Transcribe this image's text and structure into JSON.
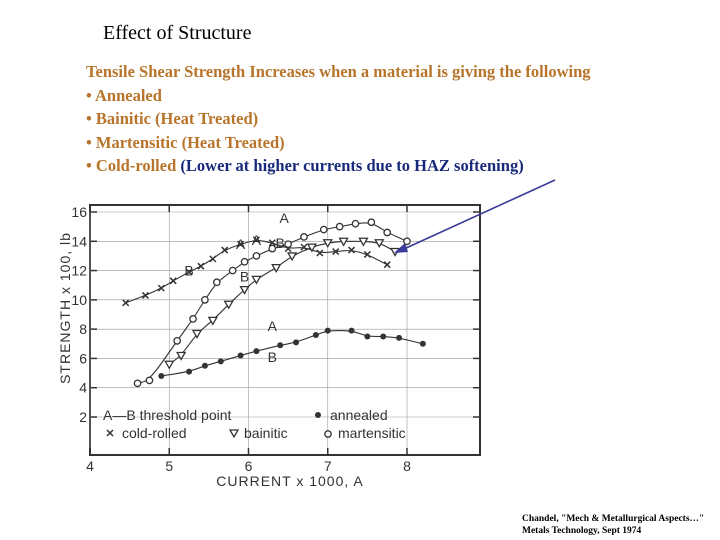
{
  "slide": {
    "title": "Effect of Structure",
    "intro": "Tensile Shear Strength Increases when a material is giving the following",
    "bullets": [
      "• Annealed",
      "• Bainitic (Heat Treated)",
      "• Martensitic (Heat Treated)",
      "• Cold-rolled"
    ],
    "cold_rolled_note": "(Lower at higher currents due to HAZ softening)",
    "citation_line1": "Chandel, \"Mech & Metallurgical Aspects…\"",
    "citation_line2": "Metals Technology, Sept 1974",
    "colors": {
      "orange_text": "#b8742a",
      "navy_text": "#1a2a7a",
      "arrow": "#3a3a9a"
    }
  },
  "chart_data": {
    "type": "scatter",
    "xlabel": "CURRENT x 1000, A",
    "ylabel": "STRENGTH x 100, lb",
    "xlim": [
      4,
      9
    ],
    "ylim": [
      2,
      16
    ],
    "x_ticks": [
      "4",
      "5",
      "6",
      "7",
      "8"
    ],
    "y_ticks": [
      "2",
      "4",
      "6",
      "8",
      "10",
      "12",
      "14",
      "16"
    ],
    "legend": {
      "threshold": "A—B  threshold point",
      "annealed": "annealed",
      "cold_rolled": "cold-rolled",
      "bainitic": "bainitic",
      "martensitic": "martensitic"
    },
    "series": [
      {
        "name": "cold-rolled",
        "marker": "x",
        "x": [
          4.45,
          4.7,
          4.9,
          5.05,
          5.25,
          5.4,
          5.55,
          5.7,
          5.9,
          6.1,
          6.3,
          6.5,
          6.7,
          6.9,
          7.1,
          7.3,
          7.5,
          7.75
        ],
        "y": [
          9.8,
          10.3,
          10.8,
          11.3,
          11.9,
          12.3,
          12.8,
          13.4,
          13.8,
          14.1,
          13.9,
          13.5,
          13.6,
          13.2,
          13.3,
          13.4,
          13.1,
          12.4
        ]
      },
      {
        "name": "martensitic",
        "marker": "circle",
        "x": [
          4.6,
          4.75,
          5.1,
          5.3,
          5.45,
          5.6,
          5.8,
          5.95,
          6.1,
          6.3,
          6.5,
          6.7,
          6.95,
          7.15,
          7.35,
          7.55,
          7.75,
          8.0
        ],
        "y": [
          4.3,
          4.5,
          7.2,
          8.7,
          10.0,
          11.2,
          12.0,
          12.6,
          13.0,
          13.5,
          13.8,
          14.3,
          14.8,
          15.0,
          15.2,
          15.3,
          14.6,
          14.0
        ]
      },
      {
        "name": "bainitic",
        "marker": "triangle-down",
        "x": [
          5.0,
          5.15,
          5.35,
          5.55,
          5.75,
          5.95,
          6.1,
          6.35,
          6.55,
          6.8,
          7.0,
          7.2,
          7.45,
          7.65,
          7.85
        ],
        "y": [
          5.6,
          6.2,
          7.7,
          8.6,
          9.7,
          10.7,
          11.4,
          12.2,
          13.0,
          13.6,
          13.9,
          14.0,
          14.0,
          13.9,
          13.3
        ]
      },
      {
        "name": "annealed",
        "marker": "dot",
        "x": [
          4.9,
          5.25,
          5.45,
          5.65,
          5.9,
          6.1,
          6.4,
          6.6,
          6.85,
          7.0,
          7.3,
          7.5,
          7.7,
          7.9,
          8.2
        ],
        "y": [
          4.8,
          5.1,
          5.5,
          5.8,
          6.2,
          6.5,
          6.9,
          7.1,
          7.6,
          7.9,
          7.9,
          7.5,
          7.5,
          7.4,
          7.0
        ]
      }
    ],
    "threshold_labels": [
      {
        "series": "cold-rolled",
        "A": "A",
        "B": "B",
        "A_x": 6.45,
        "A_y": 15.6,
        "B_x": 6.4,
        "B_y": 13.9
      },
      {
        "series": "martensitic",
        "A": "A",
        "B": "B",
        "A_x": 5.9,
        "A_y": 13.8,
        "B_x": 5.25,
        "B_y": 12.0
      },
      {
        "series": "bainitic",
        "A": "A",
        "B": "B",
        "A_x": 6.1,
        "A_y": 14.1,
        "B_x": 5.95,
        "B_y": 11.6
      },
      {
        "series": "annealed",
        "A": "A",
        "B": "B",
        "A_x": 6.3,
        "A_y": 8.2,
        "B_x": 6.3,
        "B_y": 6.1
      }
    ]
  }
}
